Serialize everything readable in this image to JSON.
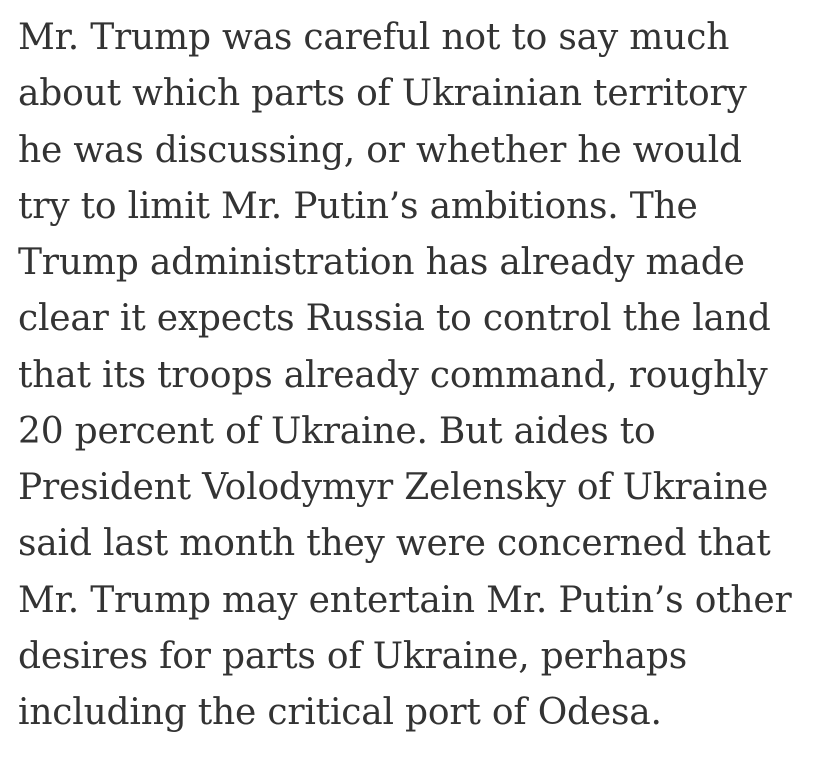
{
  "article": {
    "paragraph_lines": [
      "Mr. Trump was careful not to say much",
      "about which parts of Ukrainian territory",
      "he was discussing, or whether he would",
      "try to limit Mr. Putin’s ambitions. The",
      "Trump administration has already made",
      "clear it expects Russia to control the land",
      "that its troops already command, roughly",
      "20 percent of Ukraine. But aides to",
      "President Volodymyr Zelensky of Ukraine",
      "said last month they were concerned that",
      "Mr. Trump may entertain Mr. Putin’s other",
      "desires for parts of Ukraine, perhaps",
      "including the critical port of Odesa."
    ]
  },
  "colors": {
    "text": "#333333",
    "background": "#ffffff"
  }
}
